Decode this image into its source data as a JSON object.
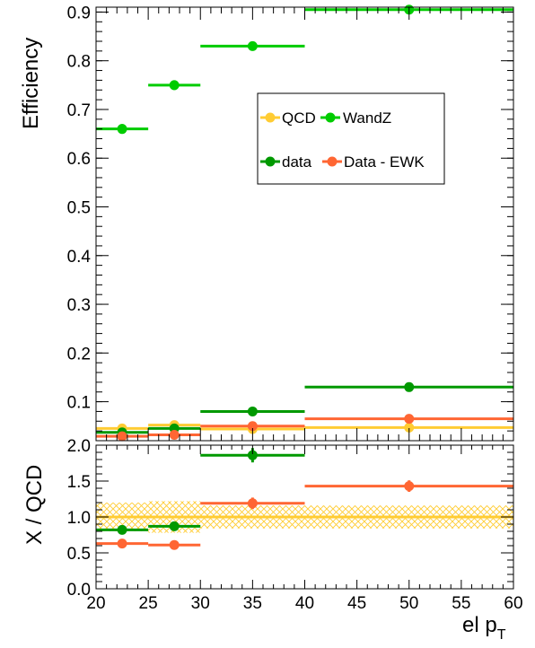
{
  "chart_data": [
    {
      "type": "scatter",
      "title": "",
      "xlabel": "",
      "ylabel": "Efficiency",
      "xlim": [
        20,
        60
      ],
      "ylim": [
        0.02,
        0.91
      ],
      "yticks": [
        0.1,
        0.2,
        0.3,
        0.4,
        0.5,
        0.6,
        0.7,
        0.8,
        0.9
      ],
      "ytick_labels": [
        "0.1",
        "0.2",
        "0.3",
        "0.4",
        "0.5",
        "0.6",
        "0.7",
        "0.8",
        "0.9"
      ],
      "legend": {
        "placement": "upper-right",
        "entries": [
          "QCD",
          "WandZ",
          "data",
          "Data - EWK"
        ]
      },
      "series": [
        {
          "name": "QCD",
          "color": "#ffcc33",
          "bins": [
            [
              20,
              25
            ],
            [
              25,
              30
            ],
            [
              30,
              40
            ],
            [
              40,
              60
            ]
          ],
          "x": [
            22.5,
            27.5,
            35,
            50
          ],
          "y": [
            0.045,
            0.052,
            0.044,
            0.047
          ],
          "yerr": [
            0.004,
            0.008,
            0.004,
            0.003
          ]
        },
        {
          "name": "WandZ",
          "color": "#00cc00",
          "bins": [
            [
              20,
              25
            ],
            [
              25,
              30
            ],
            [
              30,
              40
            ],
            [
              40,
              60
            ]
          ],
          "x": [
            22.5,
            27.5,
            35,
            50
          ],
          "y": [
            0.66,
            0.75,
            0.83,
            0.905
          ],
          "yerr": [
            0.01,
            0.01,
            0.004,
            0.004
          ]
        },
        {
          "name": "data",
          "color": "#009900",
          "bins": [
            [
              20,
              25
            ],
            [
              25,
              30
            ],
            [
              30,
              40
            ],
            [
              40,
              60
            ]
          ],
          "x": [
            22.5,
            27.5,
            35,
            50
          ],
          "y": [
            0.037,
            0.045,
            0.08,
            0.13
          ],
          "yerr": [
            0.002,
            0.002,
            0.002,
            0.002
          ]
        },
        {
          "name": "Data - EWK",
          "color": "#ff6633",
          "bins": [
            [
              20,
              25
            ],
            [
              25,
              30
            ],
            [
              30,
              40
            ],
            [
              40,
              60
            ]
          ],
          "x": [
            22.5,
            27.5,
            35,
            50
          ],
          "y": [
            0.029,
            0.032,
            0.05,
            0.065
          ],
          "yerr": [
            0.003,
            0.003,
            0.003,
            0.003
          ]
        }
      ]
    },
    {
      "type": "scatter",
      "title": "",
      "xlabel": "el p",
      "xlabel_subscript": "T",
      "ylabel": "X / QCD",
      "xlim": [
        20,
        60
      ],
      "ylim": [
        0,
        2
      ],
      "yticks": [
        0,
        0.5,
        1,
        1.5,
        2
      ],
      "ytick_labels": [
        "0.0",
        "0.5",
        "1.0",
        "1.5",
        "2.0"
      ],
      "xticks": [
        20,
        25,
        30,
        35,
        40,
        45,
        50,
        55,
        60
      ],
      "xtick_labels": [
        "20",
        "25",
        "30",
        "35",
        "40",
        "45",
        "50",
        "55",
        "60"
      ],
      "qcd_band": {
        "color": "#ffcc33",
        "bins": [
          [
            20,
            25
          ],
          [
            25,
            30
          ],
          [
            30,
            40
          ],
          [
            40,
            60
          ]
        ],
        "lower": [
          0.8,
          0.78,
          0.84,
          0.84
        ],
        "upper": [
          1.2,
          1.22,
          1.16,
          1.16
        ]
      },
      "reference_line": {
        "y": 1,
        "color": "#ffcc33"
      },
      "series": [
        {
          "name": "data",
          "color": "#009900",
          "bins": [
            [
              20,
              25
            ],
            [
              25,
              30
            ],
            [
              30,
              40
            ]
          ],
          "x": [
            22.5,
            27.5,
            35
          ],
          "y": [
            0.82,
            0.87,
            1.86
          ],
          "yerr": [
            0.03,
            0.05,
            0.1
          ]
        },
        {
          "name": "Data - EWK",
          "color": "#ff6633",
          "bins": [
            [
              20,
              25
            ],
            [
              25,
              30
            ],
            [
              30,
              40
            ],
            [
              40,
              60
            ]
          ],
          "x": [
            22.5,
            27.5,
            35,
            50
          ],
          "y": [
            0.63,
            0.61,
            1.19,
            1.43
          ],
          "yerr": [
            0.03,
            0.03,
            0.08,
            0.08
          ]
        }
      ]
    }
  ]
}
